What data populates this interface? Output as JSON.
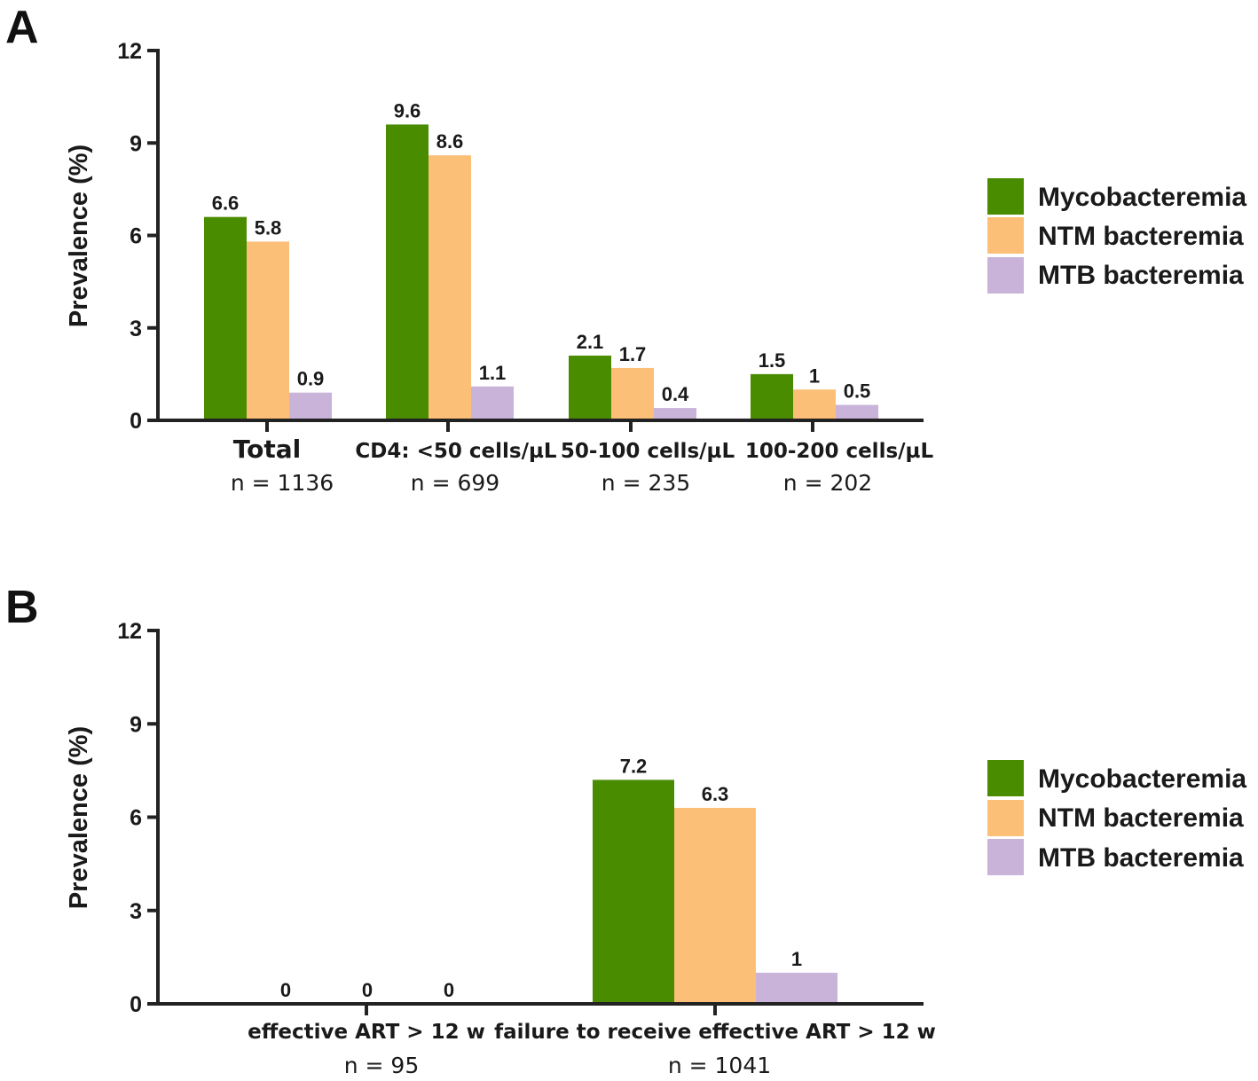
{
  "colors": {
    "mycobacteremia": "#4a8c00",
    "ntm": "#fbbf77",
    "mtb": "#c9b3d9"
  },
  "legend": {
    "items": [
      {
        "key": "mycobacteremia",
        "label": "Mycobacteremia"
      },
      {
        "key": "ntm",
        "label": "NTM bacteremia"
      },
      {
        "key": "mtb",
        "label": "MTB bacteremia"
      }
    ]
  },
  "chart_data": [
    {
      "type": "bar",
      "panel": "A",
      "title": "",
      "xlabel": "",
      "ylabel": "Prevalence (%)",
      "ylim": [
        0,
        12
      ],
      "yticks": [
        0,
        3,
        6,
        9,
        12
      ],
      "categories": [
        "Total",
        "CD4: <50 cells/µL",
        "50-100 cells/µL",
        "100-200 cells/µL"
      ],
      "category_n": [
        "n = 1136",
        "n = 699",
        "n = 235",
        "n = 202"
      ],
      "series": [
        {
          "name": "Mycobacteremia",
          "key": "mycobacteremia",
          "values": [
            6.6,
            9.6,
            2.1,
            1.5
          ],
          "labels": [
            "6.6",
            "9.6",
            "2.1",
            "1.5"
          ]
        },
        {
          "name": "NTM bacteremia",
          "key": "ntm",
          "values": [
            5.8,
            8.6,
            1.7,
            1
          ],
          "labels": [
            "5.8",
            "8.6",
            "1.7",
            "1"
          ]
        },
        {
          "name": "MTB bacteremia",
          "key": "mtb",
          "values": [
            0.9,
            1.1,
            0.4,
            0.5
          ],
          "labels": [
            "0.9",
            "1.1",
            "0.4",
            "0.5"
          ]
        }
      ]
    },
    {
      "type": "bar",
      "panel": "B",
      "title": "",
      "xlabel": "",
      "ylabel": "Prevalence (%)",
      "ylim": [
        0,
        12
      ],
      "yticks": [
        0,
        3,
        6,
        9,
        12
      ],
      "categories": [
        "effective ART > 12 w",
        "failure to receive effective ART > 12 w"
      ],
      "category_n": [
        "n = 95",
        "n = 1041"
      ],
      "series": [
        {
          "name": "Mycobacteremia",
          "key": "mycobacteremia",
          "values": [
            0,
            7.2
          ],
          "labels": [
            "0",
            "7.2"
          ]
        },
        {
          "name": "NTM bacteremia",
          "key": "ntm",
          "values": [
            0,
            6.3
          ],
          "labels": [
            "0",
            "6.3"
          ]
        },
        {
          "name": "MTB bacteremia",
          "key": "mtb",
          "values": [
            0,
            1
          ],
          "labels": [
            "0",
            "1"
          ]
        }
      ]
    }
  ]
}
